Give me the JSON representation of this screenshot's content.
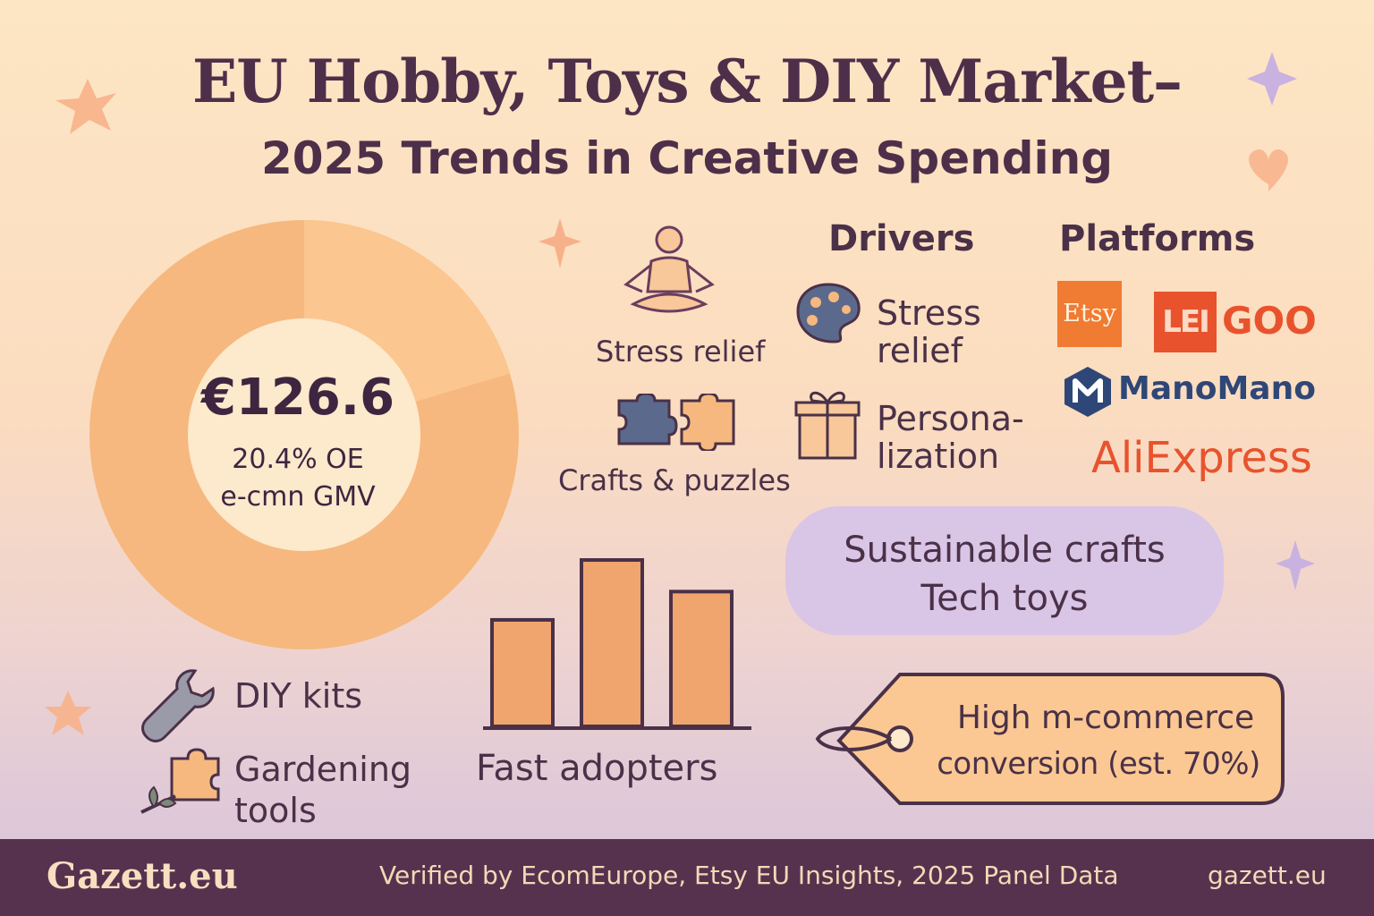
{
  "title": "EU Hobby, Toys & DIY Market–",
  "subtitle": "2025 Trends in Creative Spending",
  "donut": {
    "value": "€126.6",
    "line1": "20.4% OE",
    "line2": "e-cmn GMV",
    "share": 0.204,
    "color_main": "#f6b87e",
    "color_minor": "#fbc68f"
  },
  "categories": {
    "stress_relief": "Stress relief",
    "crafts_puzzles": "Crafts & puzzles",
    "diy_kits": "DIY kits",
    "gardening_line1": "Gardening",
    "gardening_line2": "tools"
  },
  "drivers": {
    "heading": "Drivers",
    "item1_line1": "Stress",
    "item1_line2": "relief",
    "item2_line1": "Persona-",
    "item2_line2": "lization"
  },
  "platforms": {
    "heading": "Platforms",
    "etsy": "Etsy",
    "leigoo_mark": "LEI",
    "leigoo_word": "GOO",
    "manomano": "ManoMano",
    "aliexpress": "AliExpress"
  },
  "trends_pill": {
    "line1": "Sustainable crafts",
    "line2": "Tech toys"
  },
  "adopters": {
    "label": "Fast adopters",
    "bar_levels": [
      0.64,
      1.0,
      0.81
    ],
    "bar_color": "#f0a46e"
  },
  "tag": {
    "line1": "High m-commerce",
    "line2": "conversion (est. 70%)"
  },
  "footer": {
    "brand": "Gazett.eu",
    "verified": "Verified by EcomEurope, Etsy EU Insights, 2025 Panel Data",
    "url": "gazett.eu"
  },
  "colors": {
    "accent": "#4e2f4a",
    "orange": "#f0a46e",
    "lavender": "#d9c5e6",
    "footer_bg": "#56324f"
  }
}
